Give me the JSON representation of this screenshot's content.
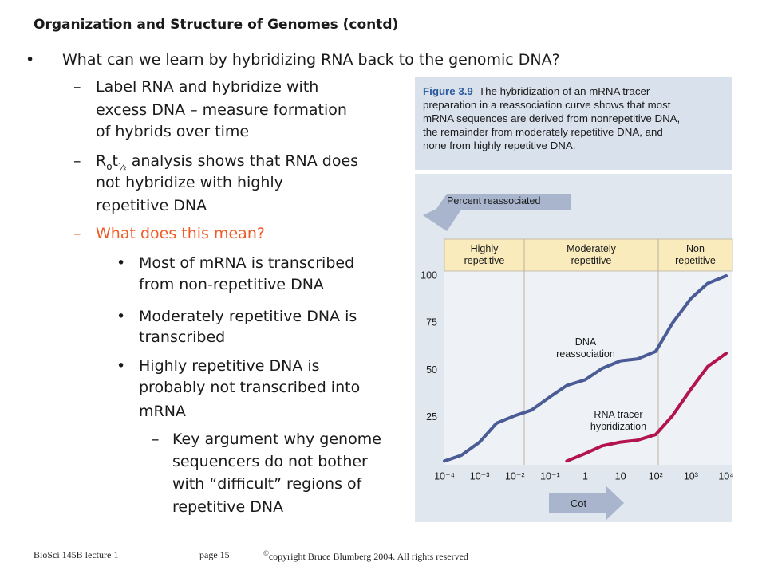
{
  "header": {
    "title": "Organization and Structure of Genomes (contd)"
  },
  "bullets": {
    "main": "What can we learn by hybridizing RNA back to the genomic DNA?",
    "sub1": [
      "Label RNA and hybridize with",
      "excess DNA – measure formation",
      "of hybrids over time"
    ],
    "sub2": {
      "r": "R",
      "o": "o",
      "t": "t",
      "half": "½",
      "lines": [
        "analysis shows that RNA does",
        "not hybridize with highly",
        "repetitive DNA"
      ]
    },
    "sub3": "What does this mean?",
    "points": [
      [
        "Most of mRNA is transcribed",
        "from non-repetitive DNA"
      ],
      [
        "Moderately repetitive DNA is",
        "transcribed"
      ],
      [
        "Highly repetitive DNA is",
        "probably not transcribed into",
        "mRNA"
      ]
    ],
    "argument": [
      "Key argument why genome",
      "sequencers do not bother",
      "with “difficult” regions of",
      "repetitive DNA"
    ]
  },
  "figure": {
    "caption": {
      "label": "Figure 3.9",
      "lines": [
        "The hybridization of an mRNA tracer",
        "preparation in a reassociation curve shows that most",
        "mRNA sequences are derived from nonrepetitive DNA,",
        "the remainder from moderately repetitive DNA, and",
        "none from highly repetitive DNA."
      ]
    }
  },
  "chart_data": {
    "type": "line",
    "y_label": "Percent reassociated",
    "x_label": "Cot",
    "regions": [
      "Highly repetitive",
      "Moderately repetitive",
      "Non repetitive"
    ],
    "x": [
      0.0001,
      0.0003,
      0.001,
      0.003,
      0.01,
      0.03,
      0.1,
      0.3,
      1,
      3,
      10,
      30,
      100,
      300,
      1000,
      3000,
      10000
    ],
    "series": [
      {
        "name": "DNA reassociation",
        "color": "#4a5b96",
        "values": [
          2,
          5,
          12,
          22,
          26,
          29,
          36,
          42,
          45,
          51,
          55,
          56,
          60,
          75,
          88,
          96,
          100
        ]
      },
      {
        "name": "RNA tracer hybridization",
        "color": "#b3134e",
        "values": [
          null,
          null,
          null,
          null,
          null,
          null,
          null,
          2,
          6,
          10,
          12,
          13,
          16,
          26,
          40,
          52,
          59
        ]
      }
    ],
    "xlim": [
      0.0001,
      10000
    ],
    "log_x": true,
    "xticks": [
      {
        "value": 0.0001,
        "label": "10⁻⁴"
      },
      {
        "value": 0.001,
        "label": "10⁻³"
      },
      {
        "value": 0.01,
        "label": "10⁻²"
      },
      {
        "value": 0.1,
        "label": "10⁻¹"
      },
      1,
      10,
      {
        "value": 100,
        "label": "10²"
      },
      {
        "value": 1000,
        "label": "10³"
      },
      {
        "value": 10000,
        "label": "10⁴"
      }
    ],
    "ylim": [
      0,
      100
    ],
    "yticks": [
      25,
      50,
      75,
      100
    ]
  },
  "footer": {
    "course": "BioSci 145B lecture 1",
    "page": "page 15",
    "copyright_symbol": "©",
    "copyright": "copyright Bruce Blumberg 2004. All rights reserved"
  }
}
